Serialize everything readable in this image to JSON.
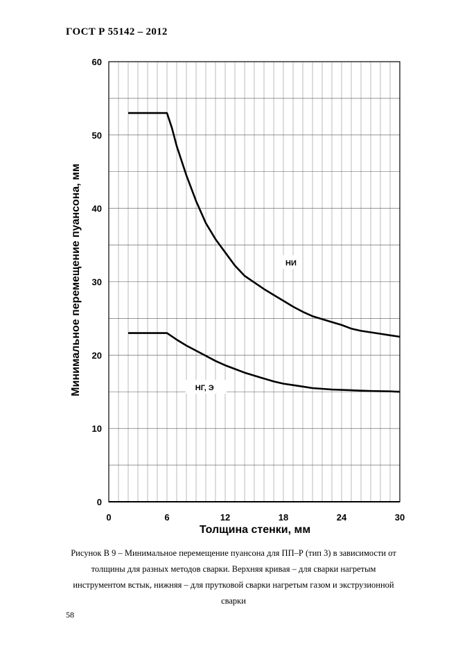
{
  "header": "ГОСТ Р  55142 – 2012",
  "page_number": "58",
  "caption": "Рисунок В 9 – Минимальное перемещение пуансона  для ПП–Р (тип 3) в зависимости от толщины для разных методов сварки. Верхняя кривая – для сварки нагретым инструментом встык, нижняя – для прутковой сварки нагретым газом и экструзионной сварки",
  "chart_data": {
    "type": "line",
    "title": "",
    "xlabel": "Толщина стенки, мм",
    "ylabel": "Минимальное перемещение пуансона, мм",
    "xlim": [
      0,
      30
    ],
    "ylim": [
      0,
      60
    ],
    "xticks": [
      0,
      6,
      12,
      18,
      24,
      30
    ],
    "yticks": [
      0,
      10,
      20,
      30,
      40,
      50,
      60
    ],
    "grid": true,
    "series": [
      {
        "name": "НИ",
        "x": [
          2,
          6,
          6.5,
          7,
          8,
          9,
          10,
          11,
          12,
          13,
          14,
          15,
          16,
          17,
          18,
          19,
          20,
          21,
          22,
          23,
          24,
          25,
          26,
          27,
          28,
          29,
          30
        ],
        "y": [
          53,
          53,
          51,
          48.5,
          44.5,
          41,
          38,
          35.8,
          34,
          32.2,
          30.8,
          29.9,
          29,
          28.2,
          27.4,
          26.6,
          25.9,
          25.3,
          24.9,
          24.5,
          24.1,
          23.6,
          23.3,
          23.1,
          22.9,
          22.7,
          22.5
        ]
      },
      {
        "name": "НГ, Э",
        "x": [
          2,
          6,
          7,
          8,
          9,
          10,
          11,
          12,
          13,
          14,
          15,
          16,
          17,
          18,
          19,
          20,
          21,
          22,
          23,
          24,
          25,
          26,
          27,
          28,
          29,
          30
        ],
        "y": [
          23,
          23,
          22.1,
          21.3,
          20.6,
          19.9,
          19.2,
          18.6,
          18.1,
          17.6,
          17.2,
          16.8,
          16.4,
          16.1,
          15.9,
          15.7,
          15.5,
          15.4,
          15.3,
          15.25,
          15.2,
          15.15,
          15.1,
          15.08,
          15.05,
          15.0
        ]
      }
    ],
    "annotations": [
      {
        "text": "НИ",
        "x": 17.5,
        "y": 32.3
      },
      {
        "text": "НГ, Э",
        "x": 8.2,
        "y": 15.3
      }
    ]
  }
}
